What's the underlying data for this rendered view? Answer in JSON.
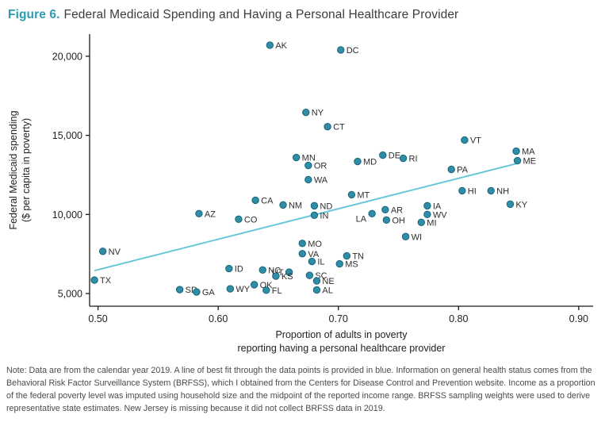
{
  "figure": {
    "label": "Figure 6.",
    "title": "Federal Medicaid Spending and Having a Personal Healthcare Provider"
  },
  "note": "Note: Data are from the calendar year 2019. A line of best fit through the data points is provided in blue. Information on general health status comes from the Behavioral Risk Factor Surveillance System (BRFSS), which I obtained from the Centers for Disease Control and Prevention website. Income as a proportion of the federal poverty level was imputed using household size and the midpoint of the reported income range. BRFSS sampling weights were used to derive representative state estimates. New Jersey is missing because it did not collect BRFSS data in 2019.",
  "colors": {
    "accent": "#2b9bb3",
    "point_fill": "#2f8ea6",
    "point_stroke": "#18657a",
    "trend": "#63c5d8",
    "axis": "#1a1a1a"
  },
  "chart_data": {
    "type": "scatter",
    "title": "Federal Medicaid Spending and Having a Personal Healthcare Provider",
    "xlabel_lines": [
      "Proportion of adults in poverty",
      "reporting having a personal healthcare provider"
    ],
    "ylabel_lines": [
      "Federal Medicaid spending",
      "($ per capita in poverty)"
    ],
    "xlim": [
      0.493,
      0.912
    ],
    "ylim": [
      4200,
      21400
    ],
    "xticks": [
      0.5,
      0.6,
      0.7,
      0.8,
      0.9
    ],
    "xtick_labels": [
      "0.50",
      "0.60",
      "0.70",
      "0.80",
      "0.90"
    ],
    "yticks": [
      5000,
      10000,
      15000,
      20000
    ],
    "ytick_labels": [
      "5,000",
      "10,000",
      "15,000",
      "20,000"
    ],
    "grid": false,
    "trend_line": {
      "x1": 0.497,
      "y1": 6450,
      "x2": 0.85,
      "y2": 13250
    },
    "points": [
      {
        "state": "AK",
        "x": 0.643,
        "y": 20700
      },
      {
        "state": "DC",
        "x": 0.702,
        "y": 20400
      },
      {
        "state": "NY",
        "x": 0.673,
        "y": 16450
      },
      {
        "state": "CT",
        "x": 0.691,
        "y": 15550
      },
      {
        "state": "VT",
        "x": 0.805,
        "y": 14700
      },
      {
        "state": "MA",
        "x": 0.848,
        "y": 14000
      },
      {
        "state": "ME",
        "x": 0.849,
        "y": 13400
      },
      {
        "state": "DE",
        "x": 0.737,
        "y": 13750
      },
      {
        "state": "RI",
        "x": 0.754,
        "y": 13550
      },
      {
        "state": "MN",
        "x": 0.665,
        "y": 13600
      },
      {
        "state": "MD",
        "x": 0.716,
        "y": 13350
      },
      {
        "state": "OR",
        "x": 0.675,
        "y": 13100
      },
      {
        "state": "PA",
        "x": 0.794,
        "y": 12850
      },
      {
        "state": "WA",
        "x": 0.675,
        "y": 12200
      },
      {
        "state": "HI",
        "x": 0.803,
        "y": 11500
      },
      {
        "state": "NH",
        "x": 0.827,
        "y": 11500
      },
      {
        "state": "MT",
        "x": 0.711,
        "y": 11250
      },
      {
        "state": "KY",
        "x": 0.843,
        "y": 10650
      },
      {
        "state": "CA",
        "x": 0.631,
        "y": 10900
      },
      {
        "state": "NM",
        "x": 0.654,
        "y": 10600
      },
      {
        "state": "ND",
        "x": 0.68,
        "y": 10550
      },
      {
        "state": "IA",
        "x": 0.774,
        "y": 10550
      },
      {
        "state": "AZ",
        "x": 0.584,
        "y": 10050
      },
      {
        "state": "AR",
        "x": 0.739,
        "y": 10300
      },
      {
        "state": "LA",
        "x": 0.728,
        "y": 10050,
        "label_side": "left",
        "label_dy": 6
      },
      {
        "state": "WV",
        "x": 0.774,
        "y": 10000
      },
      {
        "state": "IN",
        "x": 0.68,
        "y": 9950
      },
      {
        "state": "OH",
        "x": 0.74,
        "y": 9650
      },
      {
        "state": "CO",
        "x": 0.617,
        "y": 9700
      },
      {
        "state": "MI",
        "x": 0.769,
        "y": 9500
      },
      {
        "state": "WI",
        "x": 0.756,
        "y": 8600
      },
      {
        "state": "MO",
        "x": 0.67,
        "y": 8170
      },
      {
        "state": "NV",
        "x": 0.504,
        "y": 7670
      },
      {
        "state": "VA",
        "x": 0.67,
        "y": 7520
      },
      {
        "state": "TN",
        "x": 0.707,
        "y": 7380
      },
      {
        "state": "IL",
        "x": 0.678,
        "y": 7030
      },
      {
        "state": "MS",
        "x": 0.701,
        "y": 6880
      },
      {
        "state": "ID",
        "x": 0.609,
        "y": 6580
      },
      {
        "state": "NC",
        "x": 0.637,
        "y": 6490
      },
      {
        "state": "UT",
        "x": 0.659,
        "y": 6350,
        "label_side": "left"
      },
      {
        "state": "KS",
        "x": 0.648,
        "y": 6100
      },
      {
        "state": "SC",
        "x": 0.676,
        "y": 6150
      },
      {
        "state": "TX",
        "x": 0.497,
        "y": 5850
      },
      {
        "state": "NE",
        "x": 0.682,
        "y": 5800
      },
      {
        "state": "OK",
        "x": 0.63,
        "y": 5560
      },
      {
        "state": "WY",
        "x": 0.61,
        "y": 5300
      },
      {
        "state": "FL",
        "x": 0.64,
        "y": 5210
      },
      {
        "state": "SD",
        "x": 0.568,
        "y": 5250
      },
      {
        "state": "GA",
        "x": 0.582,
        "y": 5100
      },
      {
        "state": "AL",
        "x": 0.682,
        "y": 5230
      }
    ]
  }
}
